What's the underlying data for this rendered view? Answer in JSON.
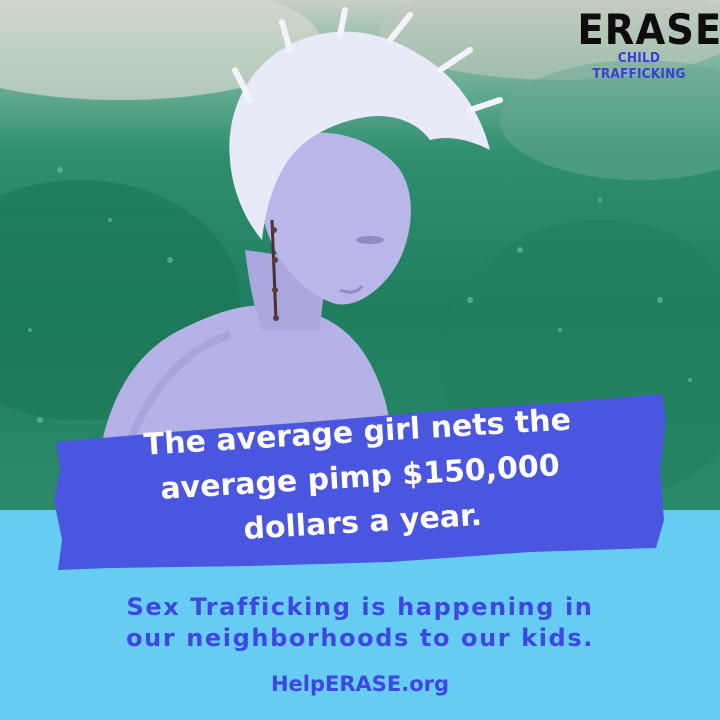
{
  "logo": {
    "word": "ERASE",
    "subtitle": "CHILD TRAFFICKING"
  },
  "banner": {
    "lines": [
      "The average girl nets the",
      "average pimp $150,000",
      "dollars a year."
    ]
  },
  "tagline": {
    "lines": [
      "Sex Trafficking is happening in",
      "our neighborhoods to our kids."
    ]
  },
  "website": "HelpERASE.org",
  "colors": {
    "banner": "#4a55e0",
    "panel": "#67ccf3",
    "text_blue": "#3e48e0",
    "logo_subtitle": "#3a3fd6"
  }
}
